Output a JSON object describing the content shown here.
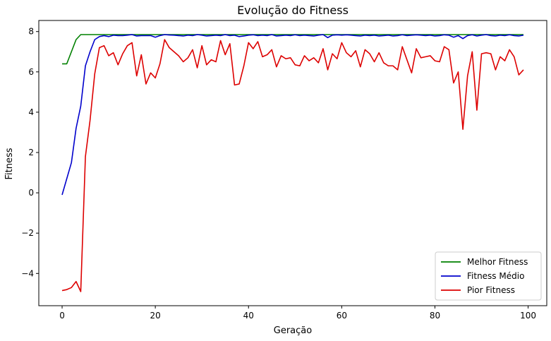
{
  "chart_data": {
    "type": "line",
    "title": "Evolução do Fitness",
    "xlabel": "Geração",
    "ylabel": "Fitness",
    "xlim": [
      -5,
      104
    ],
    "ylim": [
      -5.6,
      8.55
    ],
    "xticks": [
      0,
      20,
      40,
      60,
      80,
      100
    ],
    "yticks": [
      -4,
      -2,
      0,
      2,
      4,
      6,
      8
    ],
    "xtick_labels": [
      "0",
      "20",
      "40",
      "60",
      "80",
      "100"
    ],
    "ytick_labels": [
      "−4",
      "−2",
      "0",
      "2",
      "4",
      "6",
      "8"
    ],
    "grid": false,
    "legend_position": "lower right",
    "series": [
      {
        "name": "Melhor Fitness",
        "color": "#008000",
        "x_start": 0,
        "values": [
          6.4,
          6.4,
          7.0,
          7.6,
          7.85,
          7.85,
          7.85,
          7.85,
          7.85,
          7.85,
          7.85,
          7.85,
          7.85,
          7.85,
          7.85,
          7.85,
          7.85,
          7.85,
          7.85,
          7.85,
          7.85,
          7.85,
          7.85,
          7.85,
          7.85,
          7.85,
          7.85,
          7.85,
          7.85,
          7.85,
          7.85,
          7.85,
          7.85,
          7.85,
          7.85,
          7.85,
          7.85,
          7.85,
          7.85,
          7.85,
          7.85,
          7.85,
          7.85,
          7.85,
          7.85,
          7.85,
          7.85,
          7.85,
          7.85,
          7.85,
          7.85,
          7.85,
          7.85,
          7.85,
          7.85,
          7.85,
          7.85,
          7.85,
          7.85,
          7.85,
          7.85,
          7.85,
          7.85,
          7.85,
          7.85,
          7.85,
          7.85,
          7.85,
          7.85,
          7.85,
          7.85,
          7.85,
          7.85,
          7.85,
          7.85,
          7.85,
          7.85,
          7.85,
          7.85,
          7.85,
          7.85,
          7.85,
          7.85,
          7.85,
          7.85,
          7.85,
          7.85,
          7.85,
          7.85,
          7.85,
          7.85,
          7.85,
          7.85,
          7.85,
          7.85,
          7.85,
          7.85,
          7.85,
          7.85,
          7.85
        ]
      },
      {
        "name": "Fitness Médio",
        "color": "#0000cc",
        "x_start": 0,
        "values": [
          -0.1,
          0.7,
          1.5,
          3.2,
          4.3,
          6.3,
          7.0,
          7.6,
          7.75,
          7.8,
          7.75,
          7.82,
          7.8,
          7.8,
          7.82,
          7.85,
          7.78,
          7.8,
          7.8,
          7.8,
          7.72,
          7.8,
          7.85,
          7.83,
          7.82,
          7.8,
          7.78,
          7.82,
          7.8,
          7.85,
          7.82,
          7.78,
          7.8,
          7.82,
          7.8,
          7.85,
          7.8,
          7.82,
          7.75,
          7.78,
          7.82,
          7.84,
          7.8,
          7.82,
          7.8,
          7.85,
          7.78,
          7.8,
          7.82,
          7.8,
          7.84,
          7.8,
          7.82,
          7.8,
          7.78,
          7.82,
          7.85,
          7.7,
          7.82,
          7.84,
          7.82,
          7.84,
          7.82,
          7.8,
          7.78,
          7.82,
          7.8,
          7.82,
          7.78,
          7.8,
          7.82,
          7.78,
          7.8,
          7.84,
          7.8,
          7.82,
          7.84,
          7.82,
          7.8,
          7.82,
          7.78,
          7.8,
          7.84,
          7.82,
          7.72,
          7.8,
          7.65,
          7.8,
          7.84,
          7.78,
          7.82,
          7.85,
          7.8,
          7.78,
          7.82,
          7.8,
          7.84,
          7.8,
          7.78,
          7.82
        ]
      },
      {
        "name": "Pior Fitness",
        "color": "#dd0000",
        "x_start": 0,
        "values": [
          -4.85,
          -4.8,
          -4.7,
          -4.4,
          -4.9,
          1.8,
          3.6,
          5.9,
          7.2,
          7.3,
          6.8,
          6.95,
          6.35,
          6.9,
          7.3,
          7.45,
          5.8,
          6.85,
          5.4,
          5.95,
          5.7,
          6.4,
          7.6,
          7.2,
          7.0,
          6.8,
          6.5,
          6.7,
          7.1,
          6.2,
          7.3,
          6.35,
          6.6,
          6.5,
          7.55,
          6.85,
          7.4,
          5.35,
          5.4,
          6.3,
          7.45,
          7.15,
          7.5,
          6.75,
          6.85,
          7.1,
          6.25,
          6.8,
          6.65,
          6.7,
          6.35,
          6.3,
          6.8,
          6.55,
          6.7,
          6.45,
          7.15,
          6.1,
          6.9,
          6.65,
          7.45,
          6.95,
          6.75,
          7.05,
          6.25,
          7.1,
          6.9,
          6.5,
          6.95,
          6.45,
          6.3,
          6.3,
          6.1,
          7.25,
          6.6,
          5.95,
          7.15,
          6.7,
          6.75,
          6.8,
          6.55,
          6.5,
          7.25,
          7.1,
          5.45,
          6.0,
          3.15,
          5.8,
          7.0,
          4.1,
          6.9,
          6.95,
          6.9,
          6.1,
          6.75,
          6.55,
          7.1,
          6.75,
          5.85,
          6.1
        ]
      }
    ]
  }
}
